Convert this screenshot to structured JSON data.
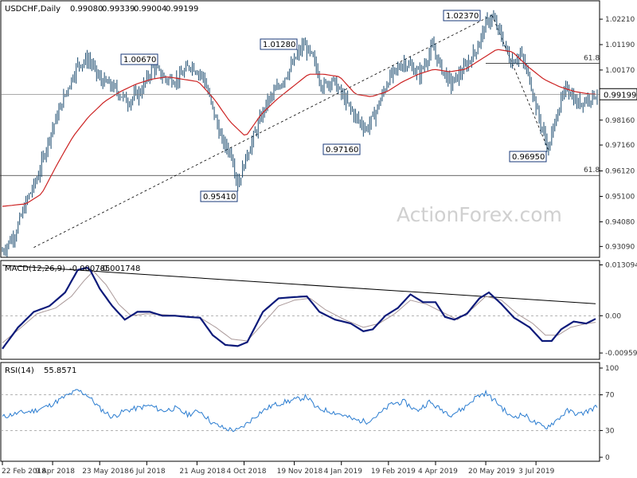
{
  "chart_data": [
    {
      "panel": "price",
      "type": "candlestick",
      "title": "USDCHF,Daily",
      "ohlc_text": [
        "0.99080",
        "0.99339",
        "0.99004",
        "0.99199"
      ],
      "ylim": [
        0.9275,
        1.0282
      ],
      "yticks": [
        "1.02210",
        "1.01190",
        "1.00170",
        "0.99160",
        "0.98160",
        "0.97160",
        "0.96120",
        "0.95100",
        "0.94080",
        "0.93090"
      ],
      "last_price": "0.99199",
      "watermark": "ActionForex.com",
      "callouts": [
        "1.00670",
        "1.01280",
        "1.02370",
        "0.97160",
        "0.96950",
        "0.95410"
      ],
      "fib_labels": [
        "61.8",
        "61.8"
      ],
      "fib_levels": [
        1.0044,
        0.9594
      ],
      "close_path": [
        [
          0,
          0.929
        ],
        [
          8,
          0.936
        ],
        [
          16,
          0.95
        ],
        [
          22,
          0.958
        ],
        [
          30,
          0.975
        ],
        [
          40,
          0.992
        ],
        [
          48,
          1.004
        ],
        [
          55,
          1.006
        ],
        [
          62,
          0.998
        ],
        [
          70,
          0.995
        ],
        [
          80,
          0.989
        ],
        [
          88,
          0.993
        ],
        [
          96,
          1.003
        ],
        [
          104,
          0.998
        ],
        [
          112,
          0.998
        ],
        [
          120,
          1.004
        ],
        [
          128,
          0.999
        ],
        [
          134,
          0.986
        ],
        [
          140,
          0.973
        ],
        [
          146,
          0.968
        ],
        [
          150,
          0.956
        ],
        [
          156,
          0.968
        ],
        [
          162,
          0.978
        ],
        [
          168,
          0.988
        ],
        [
          176,
          0.995
        ],
        [
          184,
          1.003
        ],
        [
          192,
          1.012
        ],
        [
          198,
          1.006
        ],
        [
          204,
          0.995
        ],
        [
          210,
          0.998
        ],
        [
          218,
          0.99
        ],
        [
          226,
          0.982
        ],
        [
          232,
          0.978
        ],
        [
          238,
          0.985
        ],
        [
          246,
          0.998
        ],
        [
          256,
          1.005
        ],
        [
          266,
          1.0
        ],
        [
          274,
          1.011
        ],
        [
          280,
          1.002
        ],
        [
          286,
          0.996
        ],
        [
          294,
          1.002
        ],
        [
          302,
          1.01
        ],
        [
          308,
          1.02
        ],
        [
          312,
          1.023
        ],
        [
          318,
          1.015
        ],
        [
          324,
          1.005
        ],
        [
          330,
          1.008
        ],
        [
          336,
          0.998
        ],
        [
          342,
          0.982
        ],
        [
          348,
          0.97
        ],
        [
          354,
          0.986
        ],
        [
          360,
          0.995
        ],
        [
          366,
          0.988
        ],
        [
          372,
          0.99
        ],
        [
          378,
          0.992
        ]
      ],
      "sma_path": [
        [
          0,
          0.947
        ],
        [
          15,
          0.948
        ],
        [
          25,
          0.952
        ],
        [
          35,
          0.964
        ],
        [
          45,
          0.975
        ],
        [
          55,
          0.983
        ],
        [
          65,
          0.989
        ],
        [
          75,
          0.993
        ],
        [
          85,
          0.996
        ],
        [
          95,
          0.998
        ],
        [
          105,
          0.999
        ],
        [
          115,
          0.998
        ],
        [
          125,
          0.997
        ],
        [
          135,
          0.99
        ],
        [
          145,
          0.981
        ],
        [
          155,
          0.975
        ],
        [
          165,
          0.984
        ],
        [
          175,
          0.99
        ],
        [
          185,
          0.995
        ],
        [
          195,
          1.0
        ],
        [
          205,
          1.0
        ],
        [
          215,
          0.999
        ],
        [
          225,
          0.992
        ],
        [
          235,
          0.991
        ],
        [
          245,
          0.993
        ],
        [
          255,
          0.997
        ],
        [
          265,
          1.0
        ],
        [
          275,
          1.002
        ],
        [
          285,
          1.001
        ],
        [
          295,
          1.002
        ],
        [
          305,
          1.006
        ],
        [
          315,
          1.01
        ],
        [
          325,
          1.009
        ],
        [
          335,
          1.003
        ],
        [
          345,
          0.998
        ],
        [
          355,
          0.995
        ],
        [
          365,
          0.993
        ],
        [
          375,
          0.992
        ]
      ]
    },
    {
      "panel": "macd",
      "type": "line",
      "title": "MACD(12,26,9)",
      "values_text": [
        "-0.000785",
        "-0.001748"
      ],
      "ylim": [
        -0.0106,
        0.0134
      ],
      "yticks": [
        "0.013094",
        "0.00",
        "-0.009593"
      ],
      "macd_path": [
        [
          0,
          -0.0085
        ],
        [
          10,
          -0.003
        ],
        [
          20,
          0.001
        ],
        [
          30,
          0.0025
        ],
        [
          40,
          0.006
        ],
        [
          48,
          0.0118
        ],
        [
          55,
          0.0125
        ],
        [
          62,
          0.007
        ],
        [
          70,
          0.0025
        ],
        [
          78,
          -0.001
        ],
        [
          86,
          0.001
        ],
        [
          94,
          0.001
        ],
        [
          102,
          0.0
        ],
        [
          110,
          0.0
        ],
        [
          118,
          -0.0003
        ],
        [
          126,
          -0.0005
        ],
        [
          134,
          -0.005
        ],
        [
          142,
          -0.0075
        ],
        [
          150,
          -0.0078
        ],
        [
          156,
          -0.0068
        ],
        [
          166,
          0.001
        ],
        [
          176,
          0.0045
        ],
        [
          186,
          0.0048
        ],
        [
          194,
          0.005
        ],
        [
          202,
          0.001
        ],
        [
          212,
          -0.001
        ],
        [
          222,
          -0.002
        ],
        [
          230,
          -0.004
        ],
        [
          236,
          -0.0035
        ],
        [
          244,
          0.0
        ],
        [
          252,
          0.002
        ],
        [
          260,
          0.0055
        ],
        [
          268,
          0.0035
        ],
        [
          276,
          0.0035
        ],
        [
          282,
          -0.0003
        ],
        [
          288,
          -0.001
        ],
        [
          296,
          0.0005
        ],
        [
          304,
          0.0045
        ],
        [
          310,
          0.006
        ],
        [
          318,
          0.003
        ],
        [
          326,
          -0.0005
        ],
        [
          336,
          -0.003
        ],
        [
          344,
          -0.0065
        ],
        [
          350,
          -0.0065
        ],
        [
          356,
          -0.0035
        ],
        [
          364,
          -0.0015
        ],
        [
          372,
          -0.002
        ],
        [
          378,
          -0.0008
        ]
      ],
      "signal_path": [
        [
          0,
          -0.007
        ],
        [
          12,
          -0.003
        ],
        [
          22,
          0.0005
        ],
        [
          34,
          0.002
        ],
        [
          44,
          0.005
        ],
        [
          52,
          0.009
        ],
        [
          58,
          0.0115
        ],
        [
          66,
          0.008
        ],
        [
          74,
          0.003
        ],
        [
          82,
          0.0
        ],
        [
          92,
          0.0005
        ],
        [
          102,
          0.0003
        ],
        [
          114,
          0.0
        ],
        [
          126,
          -0.0005
        ],
        [
          136,
          -0.003
        ],
        [
          146,
          -0.006
        ],
        [
          156,
          -0.0065
        ],
        [
          166,
          -0.002
        ],
        [
          176,
          0.0025
        ],
        [
          186,
          0.004
        ],
        [
          196,
          0.0045
        ],
        [
          206,
          0.0015
        ],
        [
          218,
          -0.001
        ],
        [
          230,
          -0.003
        ],
        [
          240,
          -0.002
        ],
        [
          250,
          0.0005
        ],
        [
          260,
          0.004
        ],
        [
          270,
          0.003
        ],
        [
          280,
          0.001
        ],
        [
          290,
          -0.001
        ],
        [
          300,
          0.002
        ],
        [
          308,
          0.005
        ],
        [
          318,
          0.004
        ],
        [
          328,
          0.0005
        ],
        [
          338,
          -0.002
        ],
        [
          346,
          -0.005
        ],
        [
          354,
          -0.005
        ],
        [
          362,
          -0.003
        ],
        [
          372,
          -0.002
        ],
        [
          378,
          -0.0017
        ]
      ],
      "trendline": [
        [
          0,
          0.013
        ],
        [
          378,
          0.0031
        ]
      ]
    },
    {
      "panel": "rsi",
      "type": "line",
      "title": "RSI(14)",
      "value_text": "55.8571",
      "ylim": [
        0,
        100
      ],
      "yticks": [
        "100",
        "70",
        "30",
        "0"
      ],
      "levels": [
        70,
        30
      ],
      "rsi_path": [
        [
          0,
          45
        ],
        [
          6,
          48
        ],
        [
          12,
          50
        ],
        [
          20,
          52
        ],
        [
          30,
          58
        ],
        [
          40,
          68
        ],
        [
          48,
          75
        ],
        [
          54,
          70
        ],
        [
          62,
          55
        ],
        [
          70,
          45
        ],
        [
          78,
          52
        ],
        [
          86,
          55
        ],
        [
          94,
          58
        ],
        [
          102,
          52
        ],
        [
          110,
          55
        ],
        [
          118,
          48
        ],
        [
          126,
          52
        ],
        [
          134,
          38
        ],
        [
          142,
          32
        ],
        [
          150,
          30
        ],
        [
          156,
          38
        ],
        [
          164,
          50
        ],
        [
          172,
          58
        ],
        [
          180,
          62
        ],
        [
          188,
          65
        ],
        [
          194,
          68
        ],
        [
          200,
          55
        ],
        [
          208,
          52
        ],
        [
          216,
          48
        ],
        [
          224,
          42
        ],
        [
          232,
          40
        ],
        [
          240,
          48
        ],
        [
          248,
          60
        ],
        [
          256,
          62
        ],
        [
          264,
          52
        ],
        [
          272,
          62
        ],
        [
          278,
          55
        ],
        [
          286,
          48
        ],
        [
          294,
          55
        ],
        [
          302,
          68
        ],
        [
          308,
          72
        ],
        [
          316,
          60
        ],
        [
          324,
          45
        ],
        [
          332,
          48
        ],
        [
          340,
          38
        ],
        [
          346,
          33
        ],
        [
          352,
          40
        ],
        [
          360,
          52
        ],
        [
          368,
          48
        ],
        [
          378,
          56
        ]
      ]
    }
  ],
  "x_axis": {
    "bars": 380,
    "labels": [
      "22 Feb 2018",
      "9 Apr 2018",
      "23 May 2018",
      "6 Jul 2018",
      "21 Aug 2018",
      "4 Oct 2018",
      "19 Nov 2018",
      "4 Jan 2019",
      "19 Feb 2019",
      "4 Apr 2019",
      "20 May 2019",
      "3 Jul 2019"
    ],
    "label_bars": [
      0,
      32,
      62,
      92,
      124,
      154,
      186,
      216,
      246,
      276,
      308,
      340
    ]
  },
  "colors": {
    "candles": "#1a4a6e",
    "sma": "#cc2222",
    "macd": "#0c1a7a",
    "signal": "#aa9999",
    "rsi": "#2a7cd0",
    "grid": "#888888",
    "panel_border": "#000000"
  }
}
